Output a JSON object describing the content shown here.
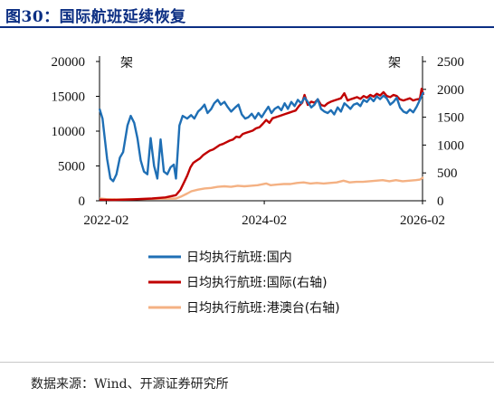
{
  "header": {
    "title": "图30：国际航班延续恢复"
  },
  "footer": {
    "source": "数据来源：Wind、开源证券研究所"
  },
  "chart_data": {
    "type": "line",
    "y_left": {
      "unit": "架",
      "min": 0,
      "max": 20000,
      "ticks": [
        "0",
        "5000",
        "10000",
        "15000",
        "20000"
      ]
    },
    "y_right": {
      "unit": "架",
      "min": 0,
      "max": 2500,
      "ticks": [
        "0",
        "500",
        "1000",
        "1500",
        "2000",
        "2500"
      ]
    },
    "x_axis": {
      "min": "2022-01",
      "max": "2026-02",
      "ticks": [
        "2022-02",
        "2024-02",
        "2026-02"
      ]
    },
    "legend_position": "bottom",
    "grid": false,
    "series": [
      {
        "name": "日均执行航班:国内",
        "axis": "left",
        "color": "#1f6fb5",
        "points": [
          [
            "2022-01-01",
            13200
          ],
          [
            "2022-01-15",
            11800
          ],
          [
            "2022-02-05",
            6000
          ],
          [
            "2022-02-20",
            3200
          ],
          [
            "2022-03-05",
            2800
          ],
          [
            "2022-03-20",
            3800
          ],
          [
            "2022-04-05",
            6200
          ],
          [
            "2022-04-20",
            7000
          ],
          [
            "2022-05-10",
            10800
          ],
          [
            "2022-05-25",
            12200
          ],
          [
            "2022-06-10",
            11200
          ],
          [
            "2022-06-25",
            9000
          ],
          [
            "2022-07-10",
            5800
          ],
          [
            "2022-07-25",
            4200
          ],
          [
            "2022-08-10",
            3800
          ],
          [
            "2022-08-25",
            9000
          ],
          [
            "2022-09-10",
            5000
          ],
          [
            "2022-09-25",
            3200
          ],
          [
            "2022-10-10",
            8800
          ],
          [
            "2022-10-25",
            4200
          ],
          [
            "2022-11-10",
            3800
          ],
          [
            "2022-11-25",
            4800
          ],
          [
            "2022-12-10",
            5200
          ],
          [
            "2022-12-20",
            3200
          ],
          [
            "2023-01-05",
            10800
          ],
          [
            "2023-01-20",
            12200
          ],
          [
            "2023-02-10",
            11800
          ],
          [
            "2023-02-28",
            12300
          ],
          [
            "2023-03-15",
            11800
          ],
          [
            "2023-04-01",
            12800
          ],
          [
            "2023-04-15",
            13200
          ],
          [
            "2023-05-01",
            13800
          ],
          [
            "2023-05-15",
            12600
          ],
          [
            "2023-06-01",
            13200
          ],
          [
            "2023-06-15",
            14000
          ],
          [
            "2023-07-01",
            14500
          ],
          [
            "2023-07-15",
            13800
          ],
          [
            "2023-08-01",
            14200
          ],
          [
            "2023-08-15",
            13500
          ],
          [
            "2023-09-01",
            12800
          ],
          [
            "2023-09-20",
            13400
          ],
          [
            "2023-10-05",
            13800
          ],
          [
            "2023-10-20",
            12400
          ],
          [
            "2023-11-05",
            11800
          ],
          [
            "2023-11-20",
            12000
          ],
          [
            "2023-12-05",
            12500
          ],
          [
            "2023-12-20",
            11800
          ],
          [
            "2024-01-05",
            12600
          ],
          [
            "2024-01-20",
            12000
          ],
          [
            "2024-02-05",
            12800
          ],
          [
            "2024-02-20",
            13500
          ],
          [
            "2024-03-05",
            12600
          ],
          [
            "2024-03-20",
            13200
          ],
          [
            "2024-04-05",
            13500
          ],
          [
            "2024-04-20",
            13000
          ],
          [
            "2024-05-05",
            14000
          ],
          [
            "2024-05-20",
            13200
          ],
          [
            "2024-06-05",
            14200
          ],
          [
            "2024-06-20",
            13600
          ],
          [
            "2024-07-05",
            14500
          ],
          [
            "2024-07-20",
            14000
          ],
          [
            "2024-08-05",
            14800
          ],
          [
            "2024-08-20",
            14200
          ],
          [
            "2024-09-05",
            13400
          ],
          [
            "2024-09-20",
            13800
          ],
          [
            "2024-10-05",
            14600
          ],
          [
            "2024-10-20",
            13200
          ],
          [
            "2024-11-05",
            12800
          ],
          [
            "2024-11-20",
            12600
          ],
          [
            "2024-12-05",
            13000
          ],
          [
            "2024-12-20",
            12400
          ],
          [
            "2025-01-05",
            13400
          ],
          [
            "2025-01-20",
            12800
          ],
          [
            "2025-02-05",
            14000
          ],
          [
            "2025-02-20",
            13600
          ],
          [
            "2025-03-05",
            13200
          ],
          [
            "2025-03-20",
            13800
          ],
          [
            "2025-04-05",
            14000
          ],
          [
            "2025-04-20",
            13600
          ],
          [
            "2025-05-05",
            14500
          ],
          [
            "2025-05-20",
            14200
          ],
          [
            "2025-06-05",
            14800
          ],
          [
            "2025-06-20",
            14300
          ],
          [
            "2025-07-05",
            15000
          ],
          [
            "2025-07-20",
            14600
          ],
          [
            "2025-08-05",
            15100
          ],
          [
            "2025-08-20",
            14700
          ],
          [
            "2025-09-05",
            13800
          ],
          [
            "2025-09-20",
            14200
          ],
          [
            "2025-10-05",
            14800
          ],
          [
            "2025-10-20",
            13400
          ],
          [
            "2025-11-05",
            12800
          ],
          [
            "2025-11-20",
            12600
          ],
          [
            "2025-12-05",
            13100
          ],
          [
            "2025-12-20",
            12700
          ],
          [
            "2026-01-05",
            13500
          ],
          [
            "2026-01-20",
            14500
          ],
          [
            "2026-02-05",
            15600
          ]
        ]
      },
      {
        "name": "日均执行航班:国际(右轴)",
        "axis": "right",
        "color": "#c00000",
        "points": [
          [
            "2022-01-01",
            20
          ],
          [
            "2022-03-01",
            15
          ],
          [
            "2022-06-01",
            25
          ],
          [
            "2022-09-01",
            40
          ],
          [
            "2022-11-01",
            60
          ],
          [
            "2022-12-20",
            100
          ],
          [
            "2023-01-10",
            200
          ],
          [
            "2023-01-25",
            320
          ],
          [
            "2023-02-10",
            450
          ],
          [
            "2023-02-25",
            600
          ],
          [
            "2023-03-10",
            680
          ],
          [
            "2023-03-25",
            720
          ],
          [
            "2023-04-10",
            760
          ],
          [
            "2023-04-25",
            820
          ],
          [
            "2023-05-10",
            860
          ],
          [
            "2023-05-25",
            900
          ],
          [
            "2023-06-10",
            920
          ],
          [
            "2023-06-25",
            960
          ],
          [
            "2023-07-10",
            1000
          ],
          [
            "2023-07-25",
            1020
          ],
          [
            "2023-08-10",
            1050
          ],
          [
            "2023-08-25",
            1080
          ],
          [
            "2023-09-10",
            1100
          ],
          [
            "2023-09-25",
            1150
          ],
          [
            "2023-10-10",
            1140
          ],
          [
            "2023-10-25",
            1200
          ],
          [
            "2023-11-10",
            1220
          ],
          [
            "2023-11-25",
            1240
          ],
          [
            "2023-12-10",
            1260
          ],
          [
            "2023-12-25",
            1300
          ],
          [
            "2024-01-10",
            1320
          ],
          [
            "2024-01-25",
            1380
          ],
          [
            "2024-02-10",
            1450
          ],
          [
            "2024-02-25",
            1400
          ],
          [
            "2024-03-10",
            1480
          ],
          [
            "2024-03-25",
            1500
          ],
          [
            "2024-04-10",
            1520
          ],
          [
            "2024-04-25",
            1540
          ],
          [
            "2024-05-10",
            1560
          ],
          [
            "2024-05-25",
            1580
          ],
          [
            "2024-06-10",
            1600
          ],
          [
            "2024-06-25",
            1620
          ],
          [
            "2024-07-10",
            1700
          ],
          [
            "2024-07-25",
            1760
          ],
          [
            "2024-08-05",
            1900
          ],
          [
            "2024-08-20",
            1720
          ],
          [
            "2024-09-05",
            1780
          ],
          [
            "2024-09-20",
            1760
          ],
          [
            "2024-10-05",
            1820
          ],
          [
            "2024-10-20",
            1720
          ],
          [
            "2024-11-05",
            1700
          ],
          [
            "2024-11-20",
            1750
          ],
          [
            "2024-12-05",
            1780
          ],
          [
            "2024-12-20",
            1800
          ],
          [
            "2025-01-05",
            1820
          ],
          [
            "2025-01-20",
            1840
          ],
          [
            "2025-02-05",
            1930
          ],
          [
            "2025-02-20",
            1800
          ],
          [
            "2025-03-05",
            1820
          ],
          [
            "2025-03-20",
            1840
          ],
          [
            "2025-04-05",
            1860
          ],
          [
            "2025-04-20",
            1830
          ],
          [
            "2025-05-05",
            1880
          ],
          [
            "2025-05-20",
            1850
          ],
          [
            "2025-06-05",
            1900
          ],
          [
            "2025-06-20",
            1870
          ],
          [
            "2025-07-05",
            1920
          ],
          [
            "2025-07-20",
            1890
          ],
          [
            "2025-08-05",
            1950
          ],
          [
            "2025-08-20",
            1880
          ],
          [
            "2025-09-05",
            1860
          ],
          [
            "2025-09-20",
            1900
          ],
          [
            "2025-10-05",
            1880
          ],
          [
            "2025-10-20",
            1820
          ],
          [
            "2025-11-05",
            1800
          ],
          [
            "2025-11-20",
            1820
          ],
          [
            "2025-12-05",
            1840
          ],
          [
            "2025-12-20",
            1800
          ],
          [
            "2026-01-05",
            1820
          ],
          [
            "2026-01-20",
            1830
          ],
          [
            "2026-01-28",
            2010
          ],
          [
            "2026-02-05",
            1900
          ]
        ]
      },
      {
        "name": "日均执行航班:港澳台(右轴)",
        "axis": "right",
        "color": "#f4b183",
        "points": [
          [
            "2022-01-01",
            40
          ],
          [
            "2022-02-01",
            30
          ],
          [
            "2022-04-01",
            25
          ],
          [
            "2022-07-01",
            30
          ],
          [
            "2022-10-01",
            35
          ],
          [
            "2022-12-20",
            40
          ],
          [
            "2023-01-15",
            80
          ],
          [
            "2023-02-10",
            130
          ],
          [
            "2023-03-01",
            170
          ],
          [
            "2023-04-01",
            200
          ],
          [
            "2023-05-01",
            220
          ],
          [
            "2023-06-01",
            230
          ],
          [
            "2023-07-01",
            250
          ],
          [
            "2023-08-01",
            260
          ],
          [
            "2023-09-01",
            250
          ],
          [
            "2023-10-01",
            270
          ],
          [
            "2023-11-01",
            260
          ],
          [
            "2023-12-01",
            270
          ],
          [
            "2024-01-01",
            280
          ],
          [
            "2024-02-10",
            310
          ],
          [
            "2024-03-01",
            280
          ],
          [
            "2024-04-01",
            290
          ],
          [
            "2024-05-01",
            300
          ],
          [
            "2024-06-01",
            300
          ],
          [
            "2024-07-01",
            320
          ],
          [
            "2024-08-01",
            330
          ],
          [
            "2024-09-01",
            310
          ],
          [
            "2024-10-01",
            320
          ],
          [
            "2024-11-01",
            310
          ],
          [
            "2024-12-01",
            320
          ],
          [
            "2025-01-01",
            330
          ],
          [
            "2025-02-01",
            360
          ],
          [
            "2025-03-01",
            330
          ],
          [
            "2025-04-01",
            340
          ],
          [
            "2025-05-01",
            340
          ],
          [
            "2025-06-01",
            350
          ],
          [
            "2025-07-01",
            360
          ],
          [
            "2025-08-01",
            370
          ],
          [
            "2025-09-01",
            350
          ],
          [
            "2025-10-01",
            370
          ],
          [
            "2025-11-01",
            350
          ],
          [
            "2025-12-01",
            360
          ],
          [
            "2026-01-01",
            370
          ],
          [
            "2026-01-20",
            380
          ],
          [
            "2026-02-05",
            420
          ]
        ]
      }
    ]
  }
}
